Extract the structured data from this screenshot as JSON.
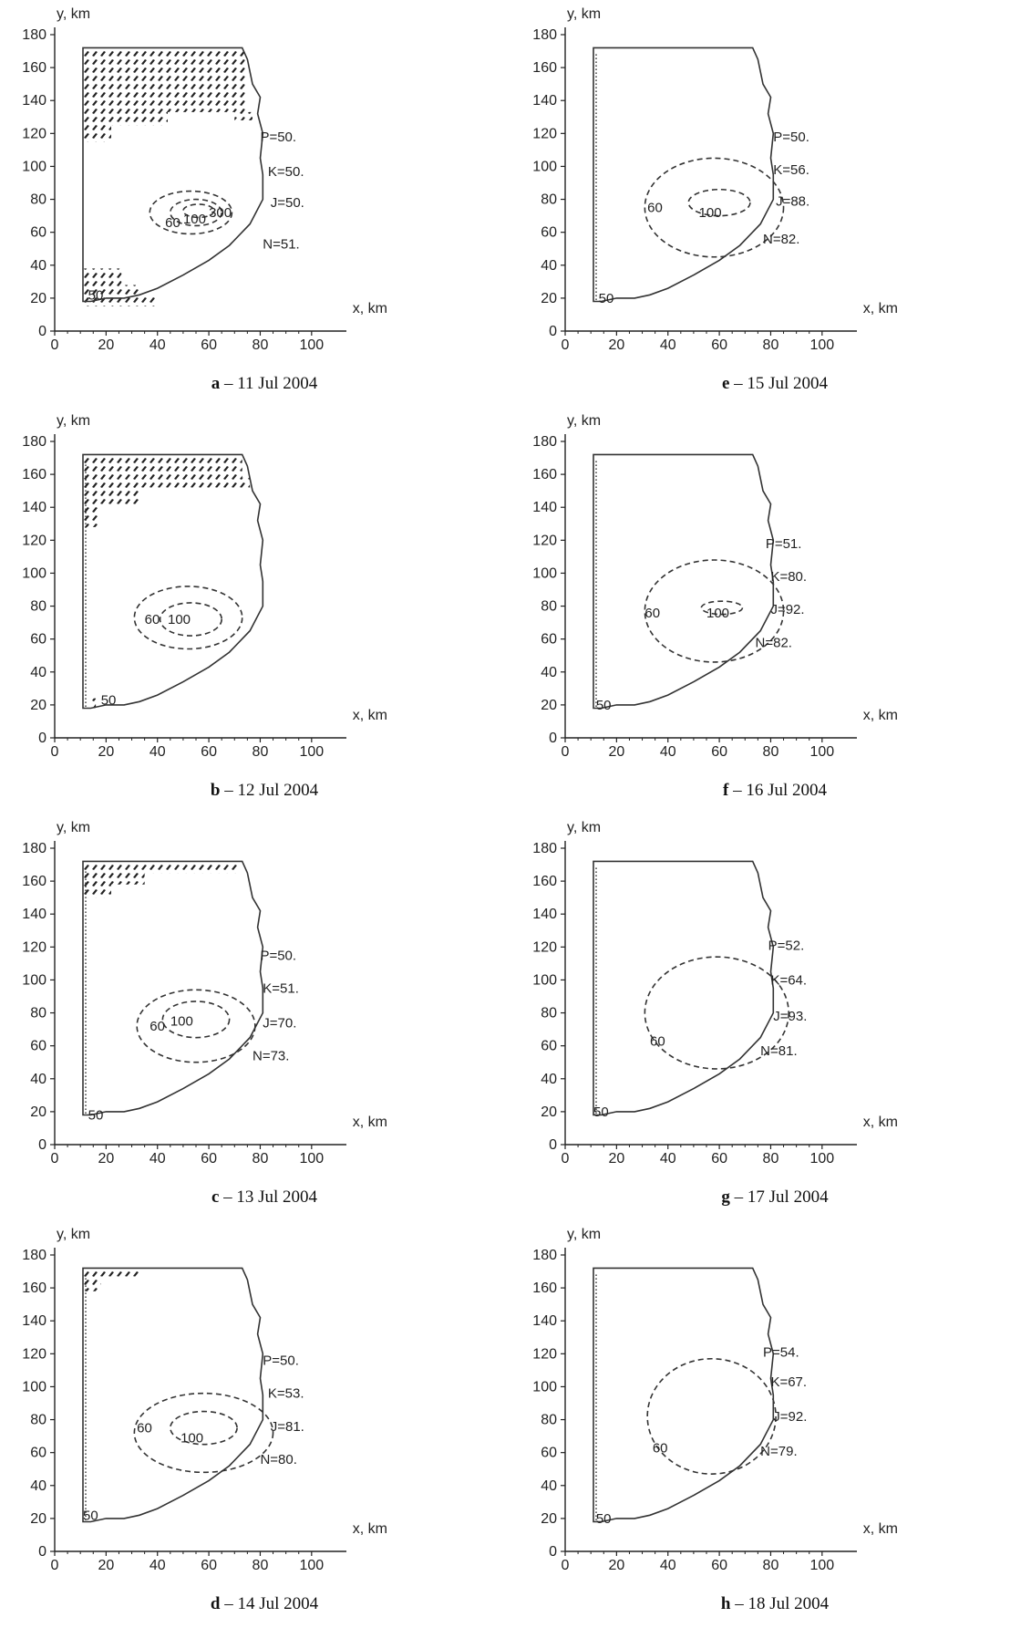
{
  "chart_data": [
    {
      "panel": "a",
      "type": "contour",
      "caption_letter": "a",
      "caption_date": " – 11 Jul 2004",
      "xlabel": "x, km",
      "ylabel": "y, km",
      "xlim": [
        0,
        110
      ],
      "ylim": [
        0,
        180
      ],
      "x_ticks": [
        "0",
        "20",
        "40",
        "60",
        "80",
        "100"
      ],
      "y_ticks": [
        "0",
        "20",
        "40",
        "60",
        "80",
        "100",
        "120",
        "140",
        "160",
        "180"
      ],
      "contour_labels": [
        {
          "text": "60",
          "x": 43,
          "y": 66
        },
        {
          "text": "100",
          "x": 50,
          "y": 68
        },
        {
          "text": "300",
          "x": 60,
          "y": 72
        },
        {
          "text": "50",
          "x": 13,
          "y": 22
        }
      ],
      "contours": [
        {
          "level": 60,
          "center": [
            53,
            72
          ],
          "rx": 16,
          "ry": 13
        },
        {
          "level": 100,
          "center": [
            55,
            72
          ],
          "rx": 10,
          "ry": 8
        },
        {
          "level": 300,
          "center": [
            56,
            73
          ],
          "rx": 6,
          "ry": 4
        }
      ],
      "station_labels": [
        {
          "text": "P=50.",
          "x": 80,
          "y": 118
        },
        {
          "text": "K=50.",
          "x": 83,
          "y": 97
        },
        {
          "text": "J=50.",
          "x": 84,
          "y": 78
        },
        {
          "text": "N=51.",
          "x": 81,
          "y": 53
        }
      ],
      "hatched_regions": [
        [
          [
            11,
            172
          ],
          [
            74,
            172
          ],
          [
            74,
            133
          ],
          [
            77,
            133
          ],
          [
            77,
            128
          ],
          [
            70,
            128
          ],
          [
            70,
            133
          ],
          [
            44,
            133
          ],
          [
            44,
            125
          ],
          [
            22,
            125
          ],
          [
            22,
            115
          ],
          [
            11,
            115
          ]
        ],
        [
          [
            11,
            38
          ],
          [
            26,
            38
          ],
          [
            26,
            28
          ],
          [
            33,
            28
          ],
          [
            33,
            22
          ],
          [
            40,
            22
          ],
          [
            40,
            15
          ],
          [
            11,
            15
          ]
        ]
      ],
      "has_left_dotted_line": false
    },
    {
      "panel": "b",
      "type": "contour",
      "caption_letter": "b",
      "caption_date": " – 12 Jul 2004",
      "xlabel": "x, km",
      "ylabel": "y, km",
      "xlim": [
        0,
        110
      ],
      "ylim": [
        0,
        180
      ],
      "x_ticks": [
        "0",
        "20",
        "40",
        "60",
        "80",
        "100"
      ],
      "y_ticks": [
        "0",
        "20",
        "40",
        "60",
        "80",
        "100",
        "120",
        "140",
        "160",
        "180"
      ],
      "contour_labels": [
        {
          "text": "60",
          "x": 35,
          "y": 72
        },
        {
          "text": "100",
          "x": 44,
          "y": 72
        },
        {
          "text": "50",
          "x": 18,
          "y": 23
        }
      ],
      "contours": [
        {
          "level": 60,
          "center": [
            52,
            73
          ],
          "rx": 21,
          "ry": 19
        },
        {
          "level": 100,
          "center": [
            53,
            72
          ],
          "rx": 12,
          "ry": 10
        }
      ],
      "station_labels": [],
      "hatched_regions": [
        [
          [
            11,
            172
          ],
          [
            73,
            172
          ],
          [
            73,
            158
          ],
          [
            76,
            158
          ],
          [
            76,
            152
          ],
          [
            33,
            152
          ],
          [
            33,
            142
          ],
          [
            17,
            142
          ],
          [
            17,
            128
          ],
          [
            11,
            128
          ]
        ],
        [
          [
            14,
            24
          ],
          [
            16,
            24
          ],
          [
            16,
            18
          ],
          [
            14,
            18
          ]
        ]
      ],
      "has_left_dotted_line": true
    },
    {
      "panel": "c",
      "type": "contour",
      "caption_letter": "c",
      "caption_date": " – 13 Jul 2004",
      "xlabel": "x, km",
      "ylabel": "y, km",
      "xlim": [
        0,
        110
      ],
      "ylim": [
        0,
        180
      ],
      "x_ticks": [
        "0",
        "20",
        "40",
        "60",
        "80",
        "100"
      ],
      "y_ticks": [
        "0",
        "20",
        "40",
        "60",
        "80",
        "100",
        "120",
        "140",
        "160",
        "180"
      ],
      "contour_labels": [
        {
          "text": "60",
          "x": 37,
          "y": 72
        },
        {
          "text": "100",
          "x": 45,
          "y": 75
        },
        {
          "text": "50",
          "x": 13,
          "y": 18
        }
      ],
      "contours": [
        {
          "level": 60,
          "center": [
            55,
            72
          ],
          "rx": 23,
          "ry": 22
        },
        {
          "level": 100,
          "center": [
            55,
            76
          ],
          "rx": 13,
          "ry": 11
        }
      ],
      "station_labels": [
        {
          "text": "P=50.",
          "x": 80,
          "y": 115
        },
        {
          "text": "K=51.",
          "x": 81,
          "y": 95
        },
        {
          "text": "J=70.",
          "x": 81,
          "y": 74
        },
        {
          "text": "N=73.",
          "x": 77,
          "y": 54
        }
      ],
      "hatched_regions": [
        [
          [
            11,
            172
          ],
          [
            72,
            172
          ],
          [
            72,
            165
          ],
          [
            35,
            165
          ],
          [
            35,
            158
          ],
          [
            22,
            158
          ],
          [
            22,
            150
          ],
          [
            11,
            150
          ]
        ]
      ],
      "has_left_dotted_line": true
    },
    {
      "panel": "d",
      "type": "contour",
      "caption_letter": "d",
      "caption_date": " – 14 Jul 2004",
      "xlabel": "x, km",
      "ylabel": "y, km",
      "xlim": [
        0,
        110
      ],
      "ylim": [
        0,
        180
      ],
      "x_ticks": [
        "0",
        "20",
        "40",
        "60",
        "80",
        "100"
      ],
      "y_ticks": [
        "0",
        "20",
        "40",
        "60",
        "80",
        "100",
        "120",
        "140",
        "160",
        "180"
      ],
      "contour_labels": [
        {
          "text": "60",
          "x": 32,
          "y": 75
        },
        {
          "text": "100",
          "x": 49,
          "y": 69
        },
        {
          "text": "50",
          "x": 11,
          "y": 22
        }
      ],
      "contours": [
        {
          "level": 60,
          "center": [
            58,
            72
          ],
          "rx": 27,
          "ry": 24
        },
        {
          "level": 100,
          "center": [
            58,
            75
          ],
          "rx": 13,
          "ry": 10
        }
      ],
      "station_labels": [
        {
          "text": "P=50.",
          "x": 81,
          "y": 116
        },
        {
          "text": "K=53.",
          "x": 83,
          "y": 96
        },
        {
          "text": "J=81.",
          "x": 84,
          "y": 76
        },
        {
          "text": "N=80.",
          "x": 80,
          "y": 56
        }
      ],
      "hatched_regions": [
        [
          [
            11,
            172
          ],
          [
            33,
            172
          ],
          [
            33,
            167
          ],
          [
            18,
            167
          ],
          [
            18,
            158
          ],
          [
            11,
            158
          ]
        ]
      ],
      "has_left_dotted_line": true
    },
    {
      "panel": "e",
      "type": "contour",
      "caption_letter": "e",
      "caption_date": " – 15 Jul 2004",
      "xlabel": "x, km",
      "ylabel": "y, km",
      "xlim": [
        0,
        110
      ],
      "ylim": [
        0,
        180
      ],
      "x_ticks": [
        "0",
        "20",
        "40",
        "60",
        "80",
        "100"
      ],
      "y_ticks": [
        "0",
        "20",
        "40",
        "60",
        "80",
        "100",
        "120",
        "140",
        "160",
        "180"
      ],
      "contour_labels": [
        {
          "text": "60",
          "x": 32,
          "y": 75
        },
        {
          "text": "100",
          "x": 52,
          "y": 72
        },
        {
          "text": "50",
          "x": 13,
          "y": 20
        }
      ],
      "contours": [
        {
          "level": 60,
          "center": [
            58,
            75
          ],
          "rx": 27,
          "ry": 30
        },
        {
          "level": 100,
          "center": [
            60,
            78
          ],
          "rx": 12,
          "ry": 8
        }
      ],
      "station_labels": [
        {
          "text": "P=50.",
          "x": 81,
          "y": 118
        },
        {
          "text": "K=56.",
          "x": 81,
          "y": 98
        },
        {
          "text": "J=88.",
          "x": 82,
          "y": 79
        },
        {
          "text": "N=82.",
          "x": 77,
          "y": 56
        }
      ],
      "hatched_regions": [],
      "has_left_dotted_line": true
    },
    {
      "panel": "f",
      "type": "contour",
      "caption_letter": "f",
      "caption_date": " – 16 Jul 2004",
      "xlabel": "x, km",
      "ylabel": "y, km",
      "xlim": [
        0,
        110
      ],
      "ylim": [
        0,
        180
      ],
      "x_ticks": [
        "0",
        "20",
        "40",
        "60",
        "80",
        "100"
      ],
      "y_ticks": [
        "0",
        "20",
        "40",
        "60",
        "80",
        "100",
        "120",
        "140",
        "160",
        "180"
      ],
      "contour_labels": [
        {
          "text": "60",
          "x": 31,
          "y": 76
        },
        {
          "text": "100",
          "x": 55,
          "y": 76
        },
        {
          "text": "50",
          "x": 12,
          "y": 20
        }
      ],
      "contours": [
        {
          "level": 60,
          "center": [
            58,
            77
          ],
          "rx": 27,
          "ry": 31
        },
        {
          "level": 100,
          "center": [
            61,
            79
          ],
          "rx": 8,
          "ry": 4
        }
      ],
      "station_labels": [
        {
          "text": "P=51.",
          "x": 78,
          "y": 118
        },
        {
          "text": "K=80.",
          "x": 80,
          "y": 98
        },
        {
          "text": "J=92.",
          "x": 80,
          "y": 78
        },
        {
          "text": "N=82.",
          "x": 74,
          "y": 58
        }
      ],
      "hatched_regions": [],
      "has_left_dotted_line": true
    },
    {
      "panel": "g",
      "type": "contour",
      "caption_letter": "g",
      "caption_date": " – 17 Jul 2004",
      "xlabel": "x, km",
      "ylabel": "y, km",
      "xlim": [
        0,
        110
      ],
      "ylim": [
        0,
        180
      ],
      "x_ticks": [
        "0",
        "20",
        "40",
        "60",
        "80",
        "100"
      ],
      "y_ticks": [
        "0",
        "20",
        "40",
        "60",
        "80",
        "100",
        "120",
        "140",
        "160",
        "180"
      ],
      "contour_labels": [
        {
          "text": "60",
          "x": 33,
          "y": 63
        },
        {
          "text": "50",
          "x": 11,
          "y": 20
        }
      ],
      "contours": [
        {
          "level": 60,
          "center": [
            59,
            80
          ],
          "rx": 28,
          "ry": 34
        }
      ],
      "station_labels": [
        {
          "text": "P=52.",
          "x": 79,
          "y": 121
        },
        {
          "text": "K=64.",
          "x": 80,
          "y": 100
        },
        {
          "text": "J=93.",
          "x": 81,
          "y": 78
        },
        {
          "text": "N=81.",
          "x": 76,
          "y": 57
        }
      ],
      "hatched_regions": [],
      "has_left_dotted_line": true
    },
    {
      "panel": "h",
      "type": "contour",
      "caption_letter": "h",
      "caption_date": " – 18 Jul 2004",
      "xlabel": "x, km",
      "ylabel": "y, km",
      "xlim": [
        0,
        110
      ],
      "ylim": [
        0,
        180
      ],
      "x_ticks": [
        "0",
        "20",
        "40",
        "60",
        "80",
        "100"
      ],
      "y_ticks": [
        "0",
        "20",
        "40",
        "60",
        "80",
        "100",
        "120",
        "140",
        "160",
        "180"
      ],
      "contour_labels": [
        {
          "text": "60",
          "x": 34,
          "y": 63
        },
        {
          "text": "50",
          "x": 12,
          "y": 20
        }
      ],
      "contours": [
        {
          "level": 60,
          "center": [
            57,
            82
          ],
          "rx": 25,
          "ry": 35
        }
      ],
      "station_labels": [
        {
          "text": "P=54.",
          "x": 77,
          "y": 121
        },
        {
          "text": "K=67.",
          "x": 80,
          "y": 103
        },
        {
          "text": "J=92.",
          "x": 81,
          "y": 82
        },
        {
          "text": "N=79.",
          "x": 76,
          "y": 61
        }
      ],
      "hatched_regions": [],
      "has_left_dotted_line": true
    }
  ],
  "boundary_polygon": [
    [
      11,
      172
    ],
    [
      73,
      172
    ],
    [
      75,
      165
    ],
    [
      77,
      150
    ],
    [
      80,
      142
    ],
    [
      79,
      132
    ],
    [
      81,
      120
    ],
    [
      80,
      105
    ],
    [
      81,
      95
    ],
    [
      81,
      80
    ],
    [
      76,
      65
    ],
    [
      68,
      52
    ],
    [
      60,
      43
    ],
    [
      50,
      34
    ],
    [
      40,
      26
    ],
    [
      33,
      22
    ],
    [
      27,
      20
    ],
    [
      20,
      20
    ],
    [
      14,
      18
    ],
    [
      11,
      18
    ]
  ]
}
